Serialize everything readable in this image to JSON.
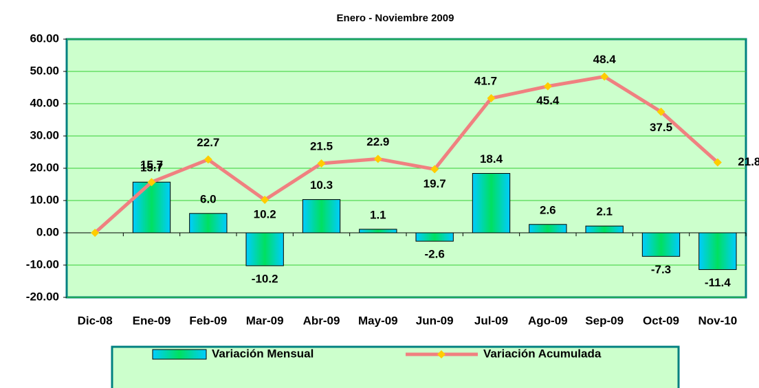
{
  "chart_data": {
    "type": "bar-line",
    "title": "Enero - Noviembre 2009",
    "categories": [
      "Dic-08",
      "Ene-09",
      "Feb-09",
      "Mar-09",
      "Abr-09",
      "May-09",
      "Jun-09",
      "Jul-09",
      "Ago-09",
      "Sep-09",
      "Oct-09",
      "Nov-10"
    ],
    "series": [
      {
        "name": "Variación Mensual",
        "type": "bar",
        "color": "#00ccff",
        "values": [
          null,
          15.7,
          6.0,
          -10.2,
          10.3,
          1.1,
          -2.6,
          18.4,
          2.6,
          2.1,
          -7.3,
          -11.4
        ],
        "value_labels": [
          null,
          "15.7",
          "6.0",
          "-10.2",
          "10.3",
          "1.1",
          "-2.6",
          "18.4",
          "2.6",
          "2.1",
          "-7.3",
          "-11.4"
        ]
      },
      {
        "name": "Variación Acumulada",
        "type": "line",
        "color": "#f08080",
        "marker_color": "#ffcc00",
        "values": [
          0,
          15.7,
          22.7,
          10.2,
          21.5,
          22.9,
          19.7,
          41.7,
          45.4,
          48.4,
          37.5,
          21.8
        ],
        "value_labels": [
          null,
          "15.7",
          "22.7",
          "10.2",
          "21.5",
          "22.9",
          "19.7",
          "41.7",
          "45.4",
          "48.4",
          "37.5",
          "21.8"
        ]
      }
    ],
    "ylim": [
      -20,
      60
    ],
    "yticks": [
      {
        "value": -20,
        "label": "-20.00"
      },
      {
        "value": -10,
        "label": "-10.00"
      },
      {
        "value": 0,
        "label": "0.00"
      },
      {
        "value": 10,
        "label": "10.00"
      },
      {
        "value": 20,
        "label": "20.00"
      },
      {
        "value": 30,
        "label": "30.00"
      },
      {
        "value": 40,
        "label": "40.00"
      },
      {
        "value": 50,
        "label": "50.00"
      },
      {
        "value": 60,
        "label": "60.00"
      }
    ],
    "grid": true,
    "legend": "bottom"
  }
}
